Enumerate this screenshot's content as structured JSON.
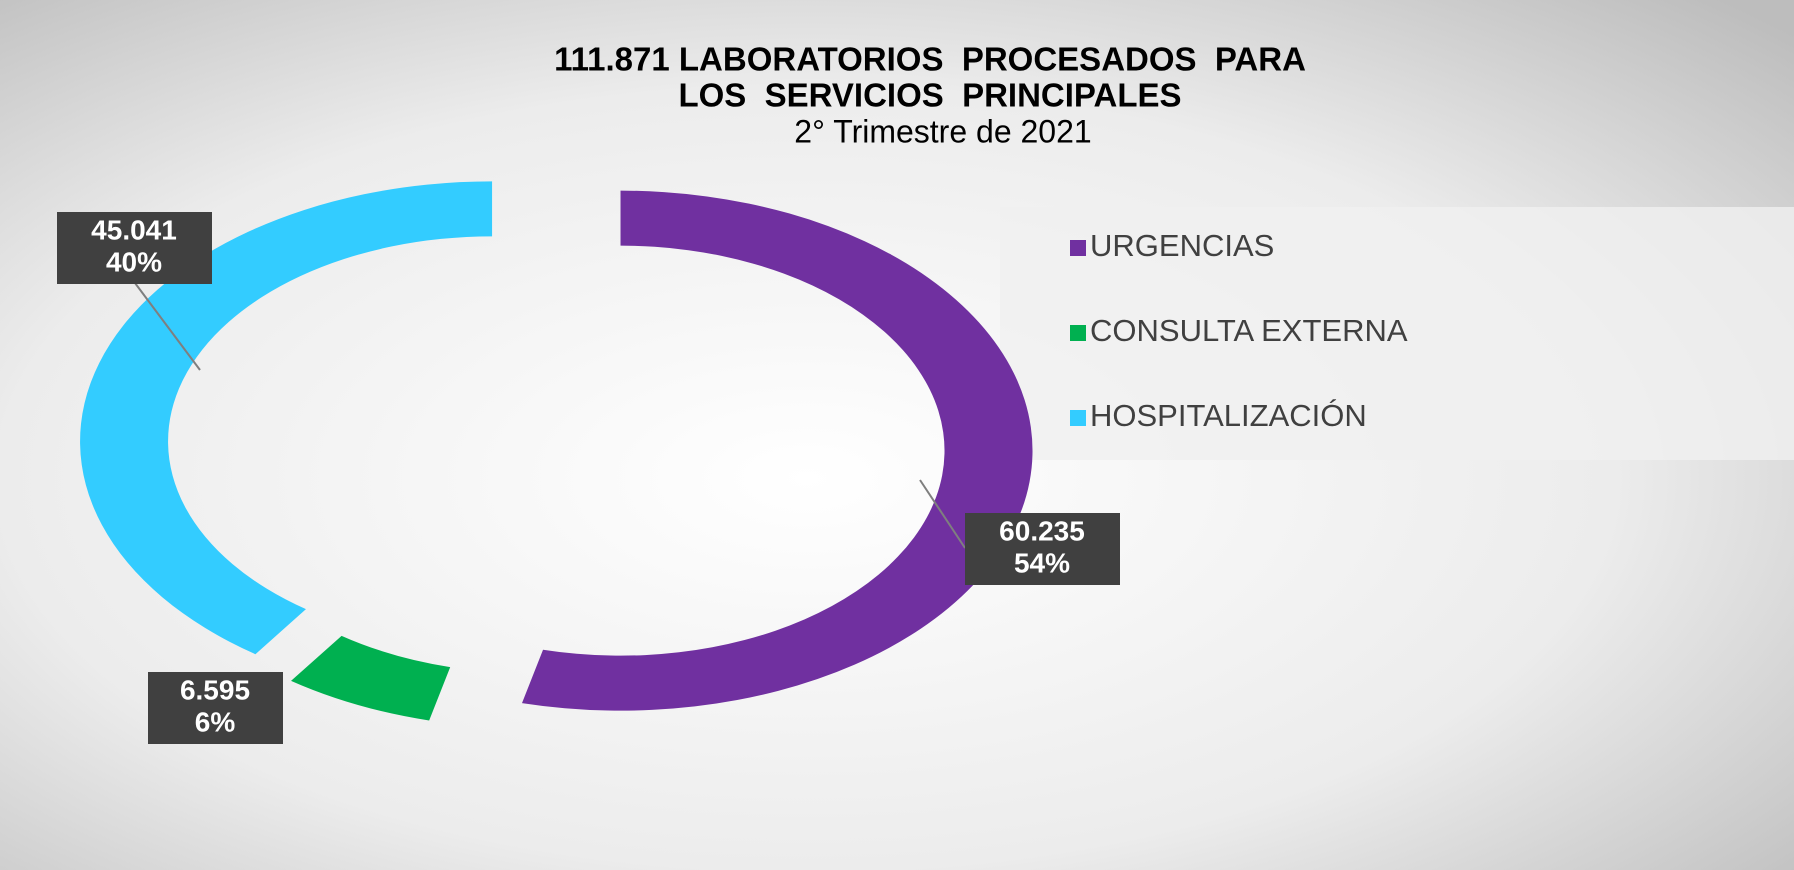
{
  "chart_data": {
    "type": "donut",
    "title": [
      "111.871 LABORATORIOS  PROCESADOS  PARA",
      "LOS  SERVICIOS  PRINCIPALES"
    ],
    "subtitle": "2° Trimestre de 2021",
    "series": [
      {
        "name": "URGENCIAS",
        "color": "#7030a0",
        "values": [
          60235
        ],
        "value_labels": [
          "60.235"
        ],
        "percent_labels": [
          "54%"
        ]
      },
      {
        "name": "CONSULTA EXTERNA",
        "color": "#00b050",
        "values": [
          6595
        ],
        "value_labels": [
          "6.595"
        ],
        "percent_labels": [
          "6%"
        ]
      },
      {
        "name": "HOSPITALIZACIÓN",
        "color": "#33ccff",
        "values": [
          45041
        ],
        "value_labels": [
          "45.041"
        ],
        "percent_labels": [
          "40%"
        ]
      }
    ],
    "legend": "right"
  }
}
